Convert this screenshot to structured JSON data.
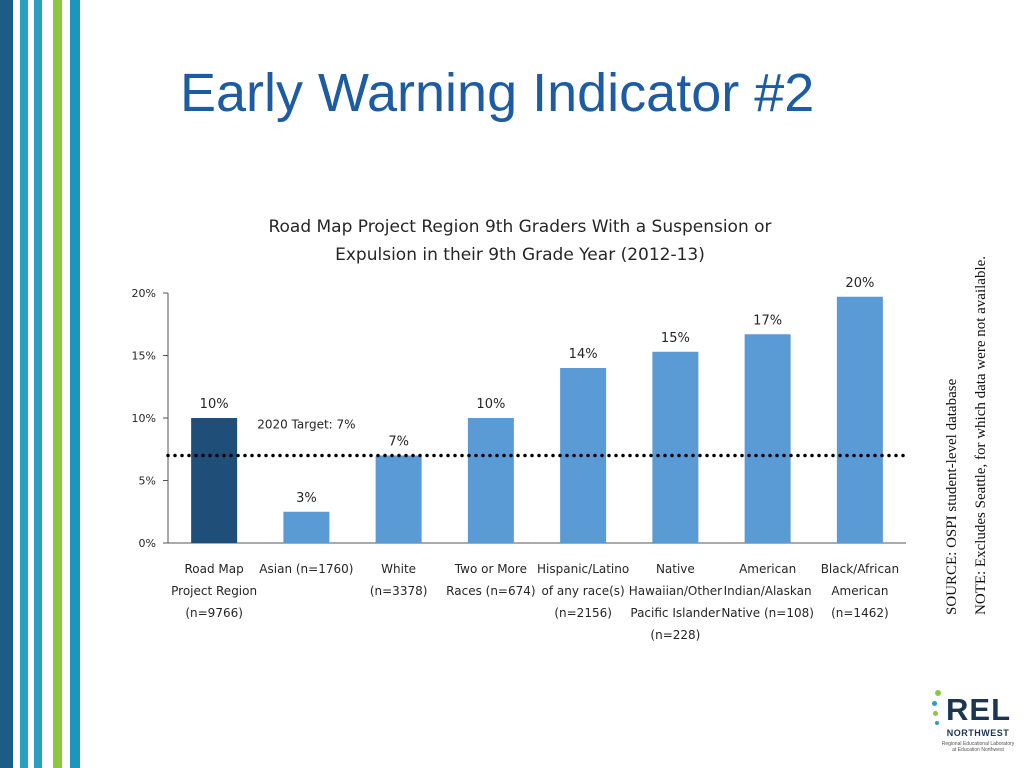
{
  "slide": {
    "title": "Early Warning Indicator #2",
    "source_note": "SOURCE: OSPI student-level database",
    "exclusion_note": "NOTE: Excludes Seattle, for which data were not available."
  },
  "logo": {
    "wordmark": "REL",
    "subtitle": "NORTHWEST",
    "tagline": [
      "Regional Educational Laboratory",
      "at Education Northwest"
    ]
  },
  "colors": {
    "stripes": [
      "#1e5c88",
      "#2aa0c0",
      "#8dc63f",
      "#1c96bd"
    ],
    "title": "#1d5ca2",
    "bar_highlight": "#1f4e79",
    "bar_default": "#5b9bd5",
    "target_line": "#000000"
  },
  "chart_data": {
    "type": "bar",
    "title": [
      "Road Map Project Region 9th Graders With a Suspension or",
      "Expulsion in their 9th Grade Year (2012-13)"
    ],
    "xlabel": "",
    "ylabel": "",
    "ylim": [
      0,
      20
    ],
    "y_ticks": [
      0,
      5,
      10,
      15,
      20
    ],
    "y_tick_labels": [
      "0%",
      "5%",
      "10%",
      "15%",
      "20%"
    ],
    "grid": false,
    "categories": [
      [
        "Road Map",
        "Project Region",
        "(n=9766)"
      ],
      [
        "Asian (n=1760)"
      ],
      [
        "White",
        "(n=3378)"
      ],
      [
        "Two or More",
        "Races (n=674)"
      ],
      [
        "Hispanic/Latino",
        "of any race(s)",
        "(n=2156)"
      ],
      [
        "Native",
        "Hawaiian/Other",
        "Pacific Islander",
        "(n=228)"
      ],
      [
        "American",
        "Indian/Alaskan",
        "Native (n=108)"
      ],
      [
        "Black/African",
        "American",
        "(n=1462)"
      ]
    ],
    "values": [
      10,
      2.5,
      7,
      10,
      14,
      15.3,
      16.7,
      19.7
    ],
    "data_labels": [
      "10%",
      "3%",
      "7%",
      "10%",
      "14%",
      "15%",
      "17%",
      "20%"
    ],
    "highlight_index": 0,
    "target": {
      "value": 7,
      "label": "2020 Target: 7%",
      "style": "dotted"
    }
  }
}
